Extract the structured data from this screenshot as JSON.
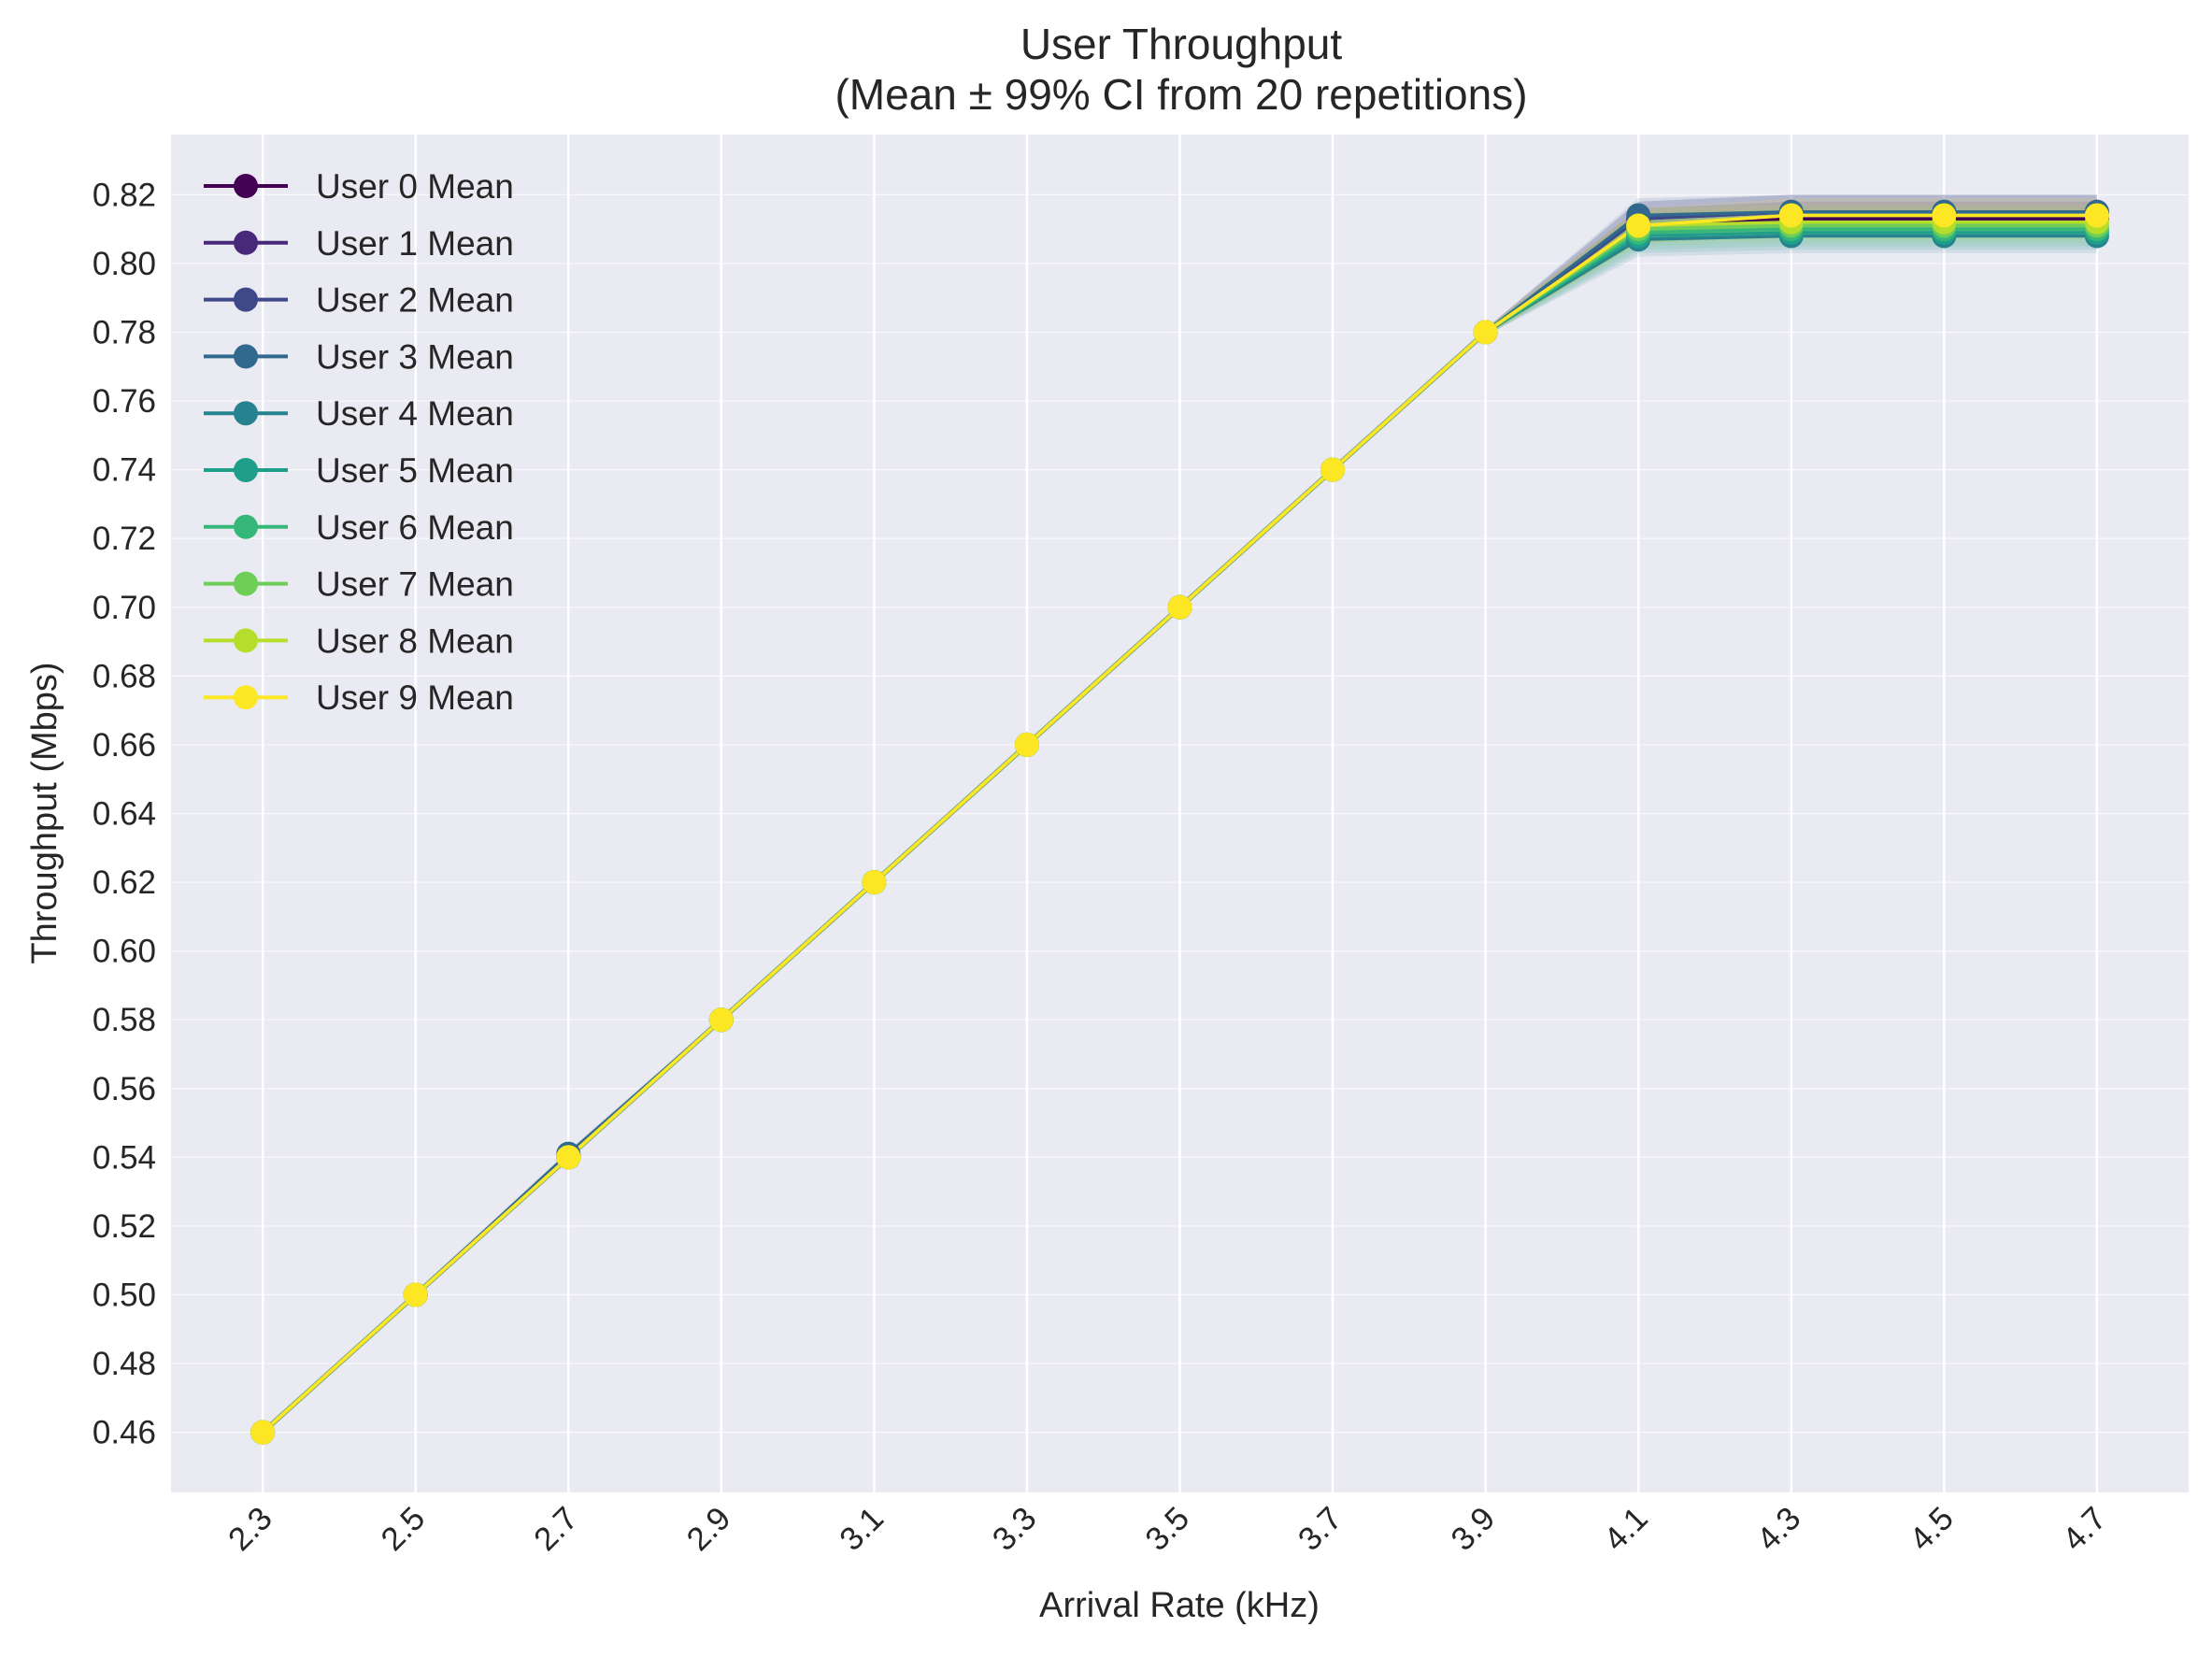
{
  "chart_data": {
    "type": "line",
    "title": "User Throughput",
    "subtitle": "(Mean ± 99% CI from 20 repetitions)",
    "xlabel": "Arrival Rate (kHz)",
    "ylabel": "Throughput (Mbps)",
    "x": [
      2.3,
      2.5,
      2.7,
      2.9,
      3.1,
      3.3,
      3.5,
      3.7,
      3.9,
      4.1,
      4.3,
      4.5,
      4.7
    ],
    "x_tick_labels": [
      "2.3",
      "2.5",
      "2.7",
      "2.9",
      "3.1",
      "3.3",
      "3.5",
      "3.7",
      "3.9",
      "4.1",
      "4.3",
      "4.5",
      "4.7"
    ],
    "xlim": [
      2.18,
      4.82
    ],
    "ylim": [
      0.4425,
      0.8375
    ],
    "y_ticks": [
      0.46,
      0.48,
      0.5,
      0.52,
      0.54,
      0.56,
      0.58,
      0.6,
      0.62,
      0.64,
      0.66,
      0.68,
      0.7,
      0.72,
      0.74,
      0.76,
      0.78,
      0.8,
      0.82
    ],
    "y_tick_labels": [
      "0.46",
      "0.48",
      "0.50",
      "0.52",
      "0.54",
      "0.56",
      "0.58",
      "0.60",
      "0.62",
      "0.64",
      "0.66",
      "0.68",
      "0.70",
      "0.72",
      "0.74",
      "0.76",
      "0.78",
      "0.80",
      "0.82"
    ],
    "grid": true,
    "legend_position": "top-left",
    "ci_level": "99%",
    "series": [
      {
        "name": "User 0 Mean",
        "color": "#440154",
        "values": [
          0.46,
          0.5,
          0.54,
          0.58,
          0.62,
          0.66,
          0.7,
          0.74,
          0.78,
          0.811,
          0.813,
          0.813,
          0.813
        ],
        "ci_low": [
          0.459,
          0.499,
          0.539,
          0.579,
          0.619,
          0.659,
          0.699,
          0.739,
          0.779,
          0.806,
          0.808,
          0.808,
          0.808
        ],
        "ci_high": [
          0.461,
          0.501,
          0.541,
          0.581,
          0.621,
          0.661,
          0.701,
          0.741,
          0.781,
          0.816,
          0.818,
          0.818,
          0.818
        ]
      },
      {
        "name": "User 1 Mean",
        "color": "#482878",
        "values": [
          0.46,
          0.5,
          0.54,
          0.58,
          0.62,
          0.66,
          0.7,
          0.74,
          0.78,
          0.813,
          0.815,
          0.815,
          0.815
        ],
        "ci_low": [
          0.459,
          0.499,
          0.539,
          0.579,
          0.619,
          0.659,
          0.699,
          0.739,
          0.779,
          0.808,
          0.81,
          0.81,
          0.81
        ],
        "ci_high": [
          0.461,
          0.501,
          0.541,
          0.581,
          0.621,
          0.661,
          0.701,
          0.741,
          0.781,
          0.818,
          0.82,
          0.82,
          0.82
        ]
      },
      {
        "name": "User 2 Mean",
        "color": "#3e4989",
        "values": [
          0.46,
          0.5,
          0.54,
          0.58,
          0.62,
          0.66,
          0.7,
          0.74,
          0.78,
          0.813,
          0.815,
          0.815,
          0.815
        ],
        "ci_low": [
          0.459,
          0.499,
          0.539,
          0.579,
          0.619,
          0.659,
          0.699,
          0.739,
          0.779,
          0.808,
          0.81,
          0.81,
          0.81
        ],
        "ci_high": [
          0.461,
          0.501,
          0.541,
          0.581,
          0.621,
          0.661,
          0.701,
          0.741,
          0.781,
          0.818,
          0.82,
          0.82,
          0.82
        ]
      },
      {
        "name": "User 3 Mean",
        "color": "#31688e",
        "values": [
          0.46,
          0.5,
          0.541,
          0.58,
          0.62,
          0.66,
          0.7,
          0.74,
          0.78,
          0.814,
          0.815,
          0.815,
          0.815
        ],
        "ci_low": [
          0.459,
          0.499,
          0.54,
          0.579,
          0.619,
          0.659,
          0.699,
          0.739,
          0.779,
          0.809,
          0.81,
          0.81,
          0.81
        ],
        "ci_high": [
          0.461,
          0.501,
          0.542,
          0.581,
          0.621,
          0.661,
          0.701,
          0.741,
          0.781,
          0.819,
          0.82,
          0.82,
          0.82
        ]
      },
      {
        "name": "User 4 Mean",
        "color": "#26828e",
        "values": [
          0.46,
          0.5,
          0.54,
          0.58,
          0.62,
          0.66,
          0.7,
          0.74,
          0.78,
          0.807,
          0.808,
          0.808,
          0.808
        ],
        "ci_low": [
          0.459,
          0.499,
          0.539,
          0.579,
          0.619,
          0.659,
          0.699,
          0.739,
          0.779,
          0.802,
          0.803,
          0.803,
          0.803
        ],
        "ci_high": [
          0.461,
          0.501,
          0.541,
          0.581,
          0.621,
          0.661,
          0.701,
          0.741,
          0.781,
          0.812,
          0.813,
          0.813,
          0.813
        ]
      },
      {
        "name": "User 5 Mean",
        "color": "#1f9e89",
        "values": [
          0.46,
          0.5,
          0.54,
          0.58,
          0.62,
          0.66,
          0.7,
          0.74,
          0.78,
          0.808,
          0.809,
          0.809,
          0.809
        ],
        "ci_low": [
          0.459,
          0.499,
          0.539,
          0.579,
          0.619,
          0.659,
          0.699,
          0.739,
          0.779,
          0.803,
          0.804,
          0.804,
          0.804
        ],
        "ci_high": [
          0.461,
          0.501,
          0.541,
          0.581,
          0.621,
          0.661,
          0.701,
          0.741,
          0.781,
          0.813,
          0.814,
          0.814,
          0.814
        ]
      },
      {
        "name": "User 6 Mean",
        "color": "#35b779",
        "values": [
          0.46,
          0.5,
          0.54,
          0.58,
          0.62,
          0.66,
          0.7,
          0.74,
          0.78,
          0.809,
          0.81,
          0.81,
          0.81
        ],
        "ci_low": [
          0.459,
          0.499,
          0.539,
          0.579,
          0.619,
          0.659,
          0.699,
          0.739,
          0.779,
          0.804,
          0.805,
          0.805,
          0.805
        ],
        "ci_high": [
          0.461,
          0.501,
          0.541,
          0.581,
          0.621,
          0.661,
          0.701,
          0.741,
          0.781,
          0.814,
          0.815,
          0.815,
          0.815
        ]
      },
      {
        "name": "User 7 Mean",
        "color": "#6ece58",
        "values": [
          0.46,
          0.5,
          0.54,
          0.58,
          0.62,
          0.66,
          0.7,
          0.74,
          0.78,
          0.81,
          0.811,
          0.811,
          0.811
        ],
        "ci_low": [
          0.459,
          0.499,
          0.539,
          0.579,
          0.619,
          0.659,
          0.699,
          0.739,
          0.779,
          0.805,
          0.806,
          0.806,
          0.806
        ],
        "ci_high": [
          0.461,
          0.501,
          0.541,
          0.581,
          0.621,
          0.661,
          0.701,
          0.741,
          0.781,
          0.815,
          0.816,
          0.816,
          0.816
        ]
      },
      {
        "name": "User 8 Mean",
        "color": "#b5de2b",
        "values": [
          0.46,
          0.5,
          0.54,
          0.58,
          0.62,
          0.66,
          0.7,
          0.74,
          0.78,
          0.811,
          0.812,
          0.812,
          0.812
        ],
        "ci_low": [
          0.459,
          0.499,
          0.539,
          0.579,
          0.619,
          0.659,
          0.699,
          0.739,
          0.779,
          0.806,
          0.807,
          0.807,
          0.807
        ],
        "ci_high": [
          0.461,
          0.501,
          0.541,
          0.581,
          0.621,
          0.661,
          0.701,
          0.741,
          0.781,
          0.816,
          0.817,
          0.817,
          0.817
        ]
      },
      {
        "name": "User 9 Mean",
        "color": "#fde725",
        "values": [
          0.46,
          0.5,
          0.54,
          0.58,
          0.62,
          0.66,
          0.7,
          0.74,
          0.78,
          0.811,
          0.814,
          0.814,
          0.814
        ],
        "ci_low": [
          0.459,
          0.499,
          0.539,
          0.579,
          0.619,
          0.659,
          0.699,
          0.739,
          0.779,
          0.806,
          0.809,
          0.809,
          0.809
        ],
        "ci_high": [
          0.461,
          0.501,
          0.541,
          0.581,
          0.621,
          0.661,
          0.701,
          0.741,
          0.781,
          0.816,
          0.819,
          0.819,
          0.819
        ]
      }
    ]
  }
}
